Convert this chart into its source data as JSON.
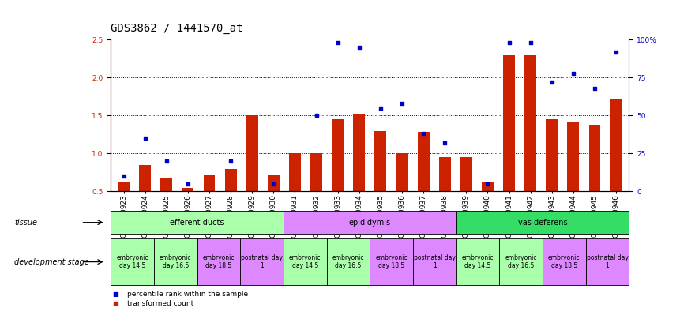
{
  "title": "GDS3862 / 1441570_at",
  "samples": [
    "GSM560923",
    "GSM560924",
    "GSM560925",
    "GSM560926",
    "GSM560927",
    "GSM560928",
    "GSM560929",
    "GSM560930",
    "GSM560931",
    "GSM560932",
    "GSM560933",
    "GSM560934",
    "GSM560935",
    "GSM560936",
    "GSM560937",
    "GSM560938",
    "GSM560939",
    "GSM560940",
    "GSM560941",
    "GSM560942",
    "GSM560943",
    "GSM560944",
    "GSM560945",
    "GSM560946"
  ],
  "bar_values": [
    0.62,
    0.85,
    0.68,
    0.55,
    0.72,
    0.8,
    1.5,
    0.72,
    1.0,
    1.0,
    1.45,
    1.52,
    1.3,
    1.0,
    1.28,
    0.95,
    0.95,
    0.62,
    2.3,
    2.3,
    1.45,
    1.42,
    1.38,
    1.72
  ],
  "scatter_pct": [
    10,
    35,
    20,
    5,
    null,
    20,
    null,
    5,
    null,
    50,
    98,
    95,
    55,
    58,
    38,
    32,
    null,
    5,
    98,
    98,
    72,
    78,
    68,
    92
  ],
  "ylim_left": [
    0.5,
    2.5
  ],
  "ylim_right": [
    0,
    100
  ],
  "yticks_left": [
    0.5,
    1.0,
    1.5,
    2.0,
    2.5
  ],
  "yticks_right": [
    0,
    25,
    50,
    75,
    100
  ],
  "bar_color": "#cc2200",
  "scatter_color": "#0000cc",
  "tissue_groups": [
    {
      "label": "efferent ducts",
      "start": 0,
      "end": 8,
      "color": "#aaffaa"
    },
    {
      "label": "epididymis",
      "start": 8,
      "end": 16,
      "color": "#dd88ff"
    },
    {
      "label": "vas deferens",
      "start": 16,
      "end": 24,
      "color": "#33dd66"
    }
  ],
  "dev_stage_groups": [
    {
      "label": "embryonic\nday 14.5",
      "start": 0,
      "end": 2,
      "color": "#aaffaa"
    },
    {
      "label": "embryonic\nday 16.5",
      "start": 2,
      "end": 4,
      "color": "#aaffaa"
    },
    {
      "label": "embryonic\nday 18.5",
      "start": 4,
      "end": 6,
      "color": "#dd88ff"
    },
    {
      "label": "postnatal day\n1",
      "start": 6,
      "end": 8,
      "color": "#dd88ff"
    },
    {
      "label": "embryonic\nday 14.5",
      "start": 8,
      "end": 10,
      "color": "#aaffaa"
    },
    {
      "label": "embryonic\nday 16.5",
      "start": 10,
      "end": 12,
      "color": "#aaffaa"
    },
    {
      "label": "embryonic\nday 18.5",
      "start": 12,
      "end": 14,
      "color": "#dd88ff"
    },
    {
      "label": "postnatal day\n1",
      "start": 14,
      "end": 16,
      "color": "#dd88ff"
    },
    {
      "label": "embryonic\nday 14.5",
      "start": 16,
      "end": 18,
      "color": "#aaffaa"
    },
    {
      "label": "embryonic\nday 16.5",
      "start": 18,
      "end": 20,
      "color": "#aaffaa"
    },
    {
      "label": "embryonic\nday 18.5",
      "start": 20,
      "end": 22,
      "color": "#dd88ff"
    },
    {
      "label": "postnatal day\n1",
      "start": 22,
      "end": 24,
      "color": "#dd88ff"
    }
  ],
  "legend_items": [
    {
      "label": "transformed count",
      "color": "#cc2200"
    },
    {
      "label": "percentile rank within the sample",
      "color": "#0000cc"
    }
  ],
  "background_color": "#ffffff",
  "title_fontsize": 10,
  "tick_fontsize": 6.5,
  "label_fontsize": 7.5
}
